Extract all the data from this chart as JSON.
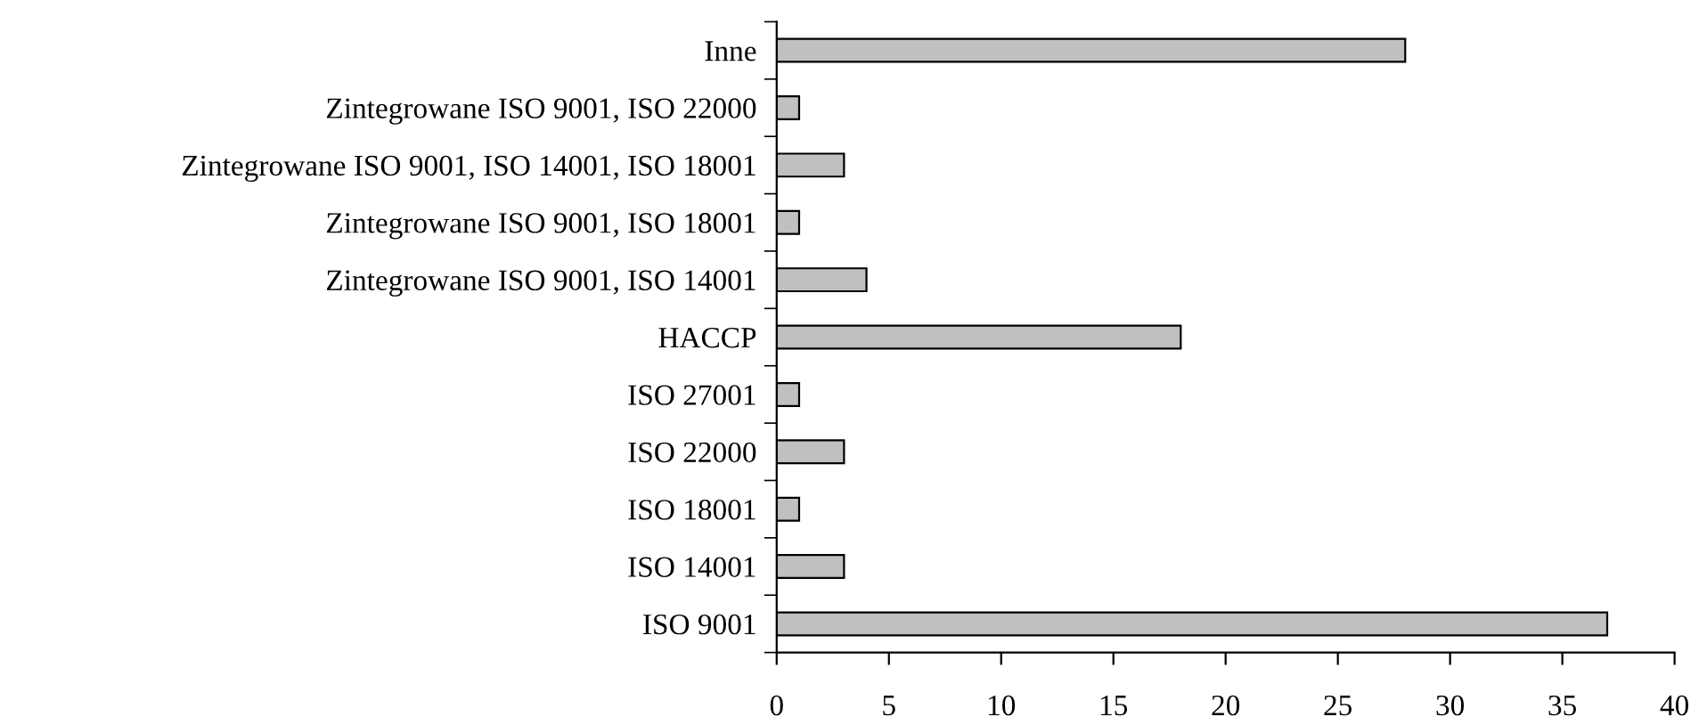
{
  "chart_data": {
    "type": "bar",
    "orientation": "horizontal",
    "categories": [
      "Inne",
      "Zintegrowane ISO 9001, ISO 22000",
      "Zintegrowane ISO 9001, ISO 14001, ISO 18001",
      "Zintegrowane ISO 9001, ISO 18001",
      "Zintegrowane ISO 9001, ISO 14001",
      "HACCP",
      "ISO 27001",
      "ISO 22000",
      "ISO 18001",
      "ISO 14001",
      "ISO 9001"
    ],
    "values": [
      28,
      1,
      3,
      1,
      4,
      18,
      1,
      3,
      1,
      3,
      37
    ],
    "color": "#c0c0c0",
    "xlim": [
      0,
      40
    ],
    "xticks": [
      0,
      5,
      10,
      15,
      20,
      25,
      30,
      35,
      40
    ],
    "grid": false,
    "legend": false
  }
}
